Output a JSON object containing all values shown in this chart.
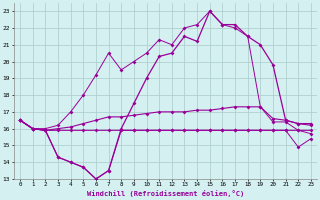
{
  "xlabel": "Windchill (Refroidissement éolien,°C)",
  "hours": [
    0,
    1,
    2,
    3,
    4,
    5,
    6,
    7,
    8,
    9,
    10,
    11,
    12,
    13,
    14,
    15,
    16,
    17,
    18,
    19,
    20,
    21,
    22,
    23
  ],
  "windchill_line": [
    16.5,
    16.0,
    15.9,
    14.3,
    14.0,
    13.7,
    13.0,
    13.5,
    16.0,
    17.5,
    19.0,
    20.3,
    20.5,
    21.5,
    21.2,
    23.0,
    22.2,
    22.2,
    21.5,
    21.0,
    19.8,
    16.5,
    16.3,
    16.3
  ],
  "temp_line": [
    16.5,
    16.0,
    15.9,
    15.9,
    15.9,
    15.9,
    15.9,
    15.9,
    15.9,
    15.9,
    15.9,
    15.9,
    15.9,
    15.9,
    15.9,
    15.9,
    15.9,
    15.9,
    15.9,
    15.9,
    15.9,
    15.9,
    15.9,
    15.9
  ],
  "avg_line": [
    16.5,
    16.0,
    15.9,
    16.0,
    16.1,
    16.3,
    16.5,
    16.7,
    16.7,
    16.8,
    16.9,
    17.0,
    17.0,
    17.0,
    17.1,
    17.1,
    17.2,
    17.3,
    17.3,
    17.3,
    16.6,
    16.5,
    16.3,
    16.2
  ],
  "min_line": [
    16.5,
    16.0,
    15.9,
    14.3,
    14.0,
    13.7,
    13.0,
    13.5,
    15.9,
    15.9,
    15.9,
    15.9,
    15.9,
    15.9,
    15.9,
    15.9,
    15.9,
    15.9,
    15.9,
    15.9,
    15.9,
    15.9,
    14.9,
    15.4
  ],
  "max_line": [
    16.5,
    16.0,
    16.0,
    16.2,
    17.0,
    18.0,
    19.2,
    20.5,
    19.5,
    20.0,
    20.5,
    21.3,
    21.0,
    22.0,
    22.2,
    23.0,
    22.2,
    22.0,
    21.5,
    17.3,
    16.4,
    16.4,
    15.9,
    15.7
  ],
  "line_color": "#990099",
  "bg_color": "#d4f0f0",
  "grid_color": "#aacccc",
  "ylim": [
    13,
    23.5
  ],
  "yticks": [
    13,
    14,
    15,
    16,
    17,
    18,
    19,
    20,
    21,
    22,
    23
  ]
}
